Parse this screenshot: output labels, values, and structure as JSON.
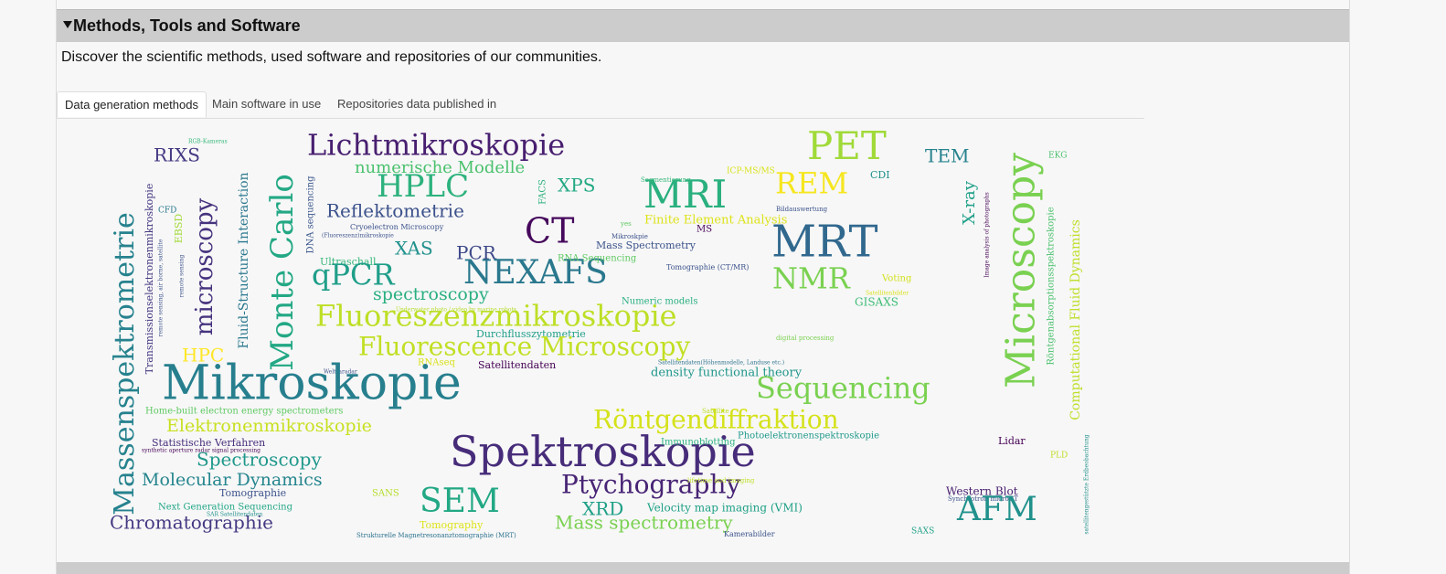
{
  "header": {
    "title": "Methods, Tools and Software",
    "description": "Discover the scientific methods, used software and repositories of our communities."
  },
  "tabs": [
    "Data generation methods",
    "Main software in use",
    "Repositories data published in"
  ],
  "wordcloud": {
    "words": [
      "RGB-Kameras",
      "RIXS",
      "Lichtmikroskopie",
      "numerische Modelle",
      "HPLC",
      "Reflektometrie",
      "Cryoelectron Microscopy",
      "(Fluoreszenz)mikroskopie",
      "XAS",
      "PCR",
      "CT",
      "Ultraschall",
      "qPCR",
      "NEXAFS",
      "spectroscopy",
      "Fluoreszenzmikroskopie",
      "Underwater photo / video by marine robots",
      "Durchflusszytometrie",
      "Fluorescence Microscopy",
      "HPC",
      "RNAseq",
      "Satellitendaten",
      "Weltraradar",
      "Mikroskopie",
      "Home-built electron energy spectrometers",
      "Elektronenmikroskopie",
      "Statistische Verfahren",
      "synthetic aperture radar signal processing",
      "Spectroscopy",
      "Molecular Dynamics",
      "Tomographie",
      "Next Generation Sequencing",
      "SAR Satellitendaten",
      "Chromatographie",
      "SANS",
      "SEM",
      "Tomography",
      "Strukturelle Magnetresonanztomographie (MRT)",
      "Spektroskopie",
      "Ptychography",
      "XRD",
      "Velocity map imaging (VMI)",
      "Mass spectrometry",
      "Kamerabilder",
      "Röntgendiffraktion",
      "Satellite",
      "Immunoblotting",
      "lifetime and imaging",
      "Photoelektronenspektroskopie",
      "Sequencing",
      "density functional theory",
      "Satellitendaten(Höhenmodelle, Landuse etc.)",
      "digital processing",
      "Numeric models",
      "NMR",
      "GISAXS",
      "Satellitenbilder",
      "Voting",
      "Tomographie (CT/MR)",
      "RNA Sequencing",
      "MRT",
      "Mass Spectrometry",
      "Mikroskpie",
      "MS",
      "yes",
      "Finite Element Analysis",
      "MRI",
      "Segmentierung",
      "XPS",
      "ICP-MS/MS",
      "REM",
      "Bildauswertung",
      "PET",
      "CDI",
      "TEM",
      "EKG",
      "Lidar",
      "PLD",
      "Western Blot",
      "Synchrotron microCT",
      "AFM",
      "SAXS",
      "Massenspektrometrie",
      "Transmissionselektronenmikroskopie",
      "CFD",
      "remote sensing, air borne, satellite",
      "EBSD",
      "remote sensing",
      "microscopy",
      "Fluid-Structure Interaction",
      "Monte Carlo",
      "DNA sequencing",
      "FACS",
      "X-ray",
      "Image analysis of photographs",
      "Microscopy",
      "Röntgenabsorptionsspektroskopie",
      "Computational Fluid Dynamics",
      "satellitengestützte Erdbeobachtung"
    ]
  }
}
